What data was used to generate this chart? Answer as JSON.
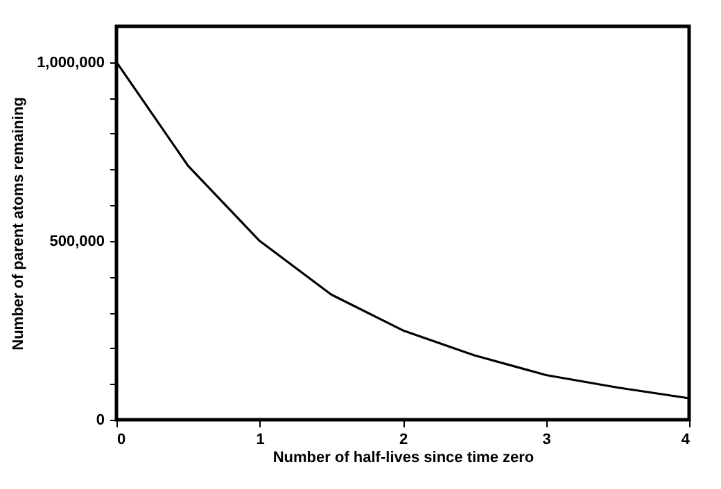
{
  "chart_data": {
    "type": "line",
    "xlabel": "Number of half-lives since time zero",
    "ylabel": "Number of parent atoms remaining",
    "x": [
      0,
      0.5,
      1,
      1.5,
      2,
      2.5,
      3,
      3.5,
      4
    ],
    "series": [
      {
        "color": "#000000",
        "values": [
          1000000,
          710000,
          500000,
          350000,
          250000,
          180000,
          125000,
          90000,
          60000
        ]
      }
    ],
    "xlim": [
      0,
      4
    ],
    "xticks": [
      0,
      1,
      2,
      3,
      4
    ],
    "ylim": [
      0,
      1100000
    ],
    "yticks": [
      {
        "value": 0,
        "label": "0"
      },
      {
        "value": 100000,
        "label": null
      },
      {
        "value": 200000,
        "label": null
      },
      {
        "value": 300000,
        "label": null
      },
      {
        "value": 400000,
        "label": null
      },
      {
        "value": 500000,
        "label": "500,000"
      },
      {
        "value": 600000,
        "label": null
      },
      {
        "value": 700000,
        "label": null
      },
      {
        "value": 800000,
        "label": null
      },
      {
        "value": 900000,
        "label": null
      },
      {
        "value": 1000000,
        "label": "1,000,000"
      }
    ],
    "grid": false,
    "marker": "none",
    "line_style": "solid"
  }
}
